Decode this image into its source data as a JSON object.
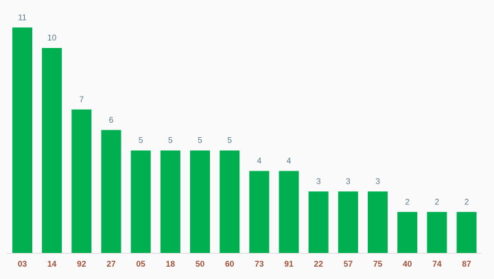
{
  "chart_data": {
    "type": "bar",
    "categories": [
      "03",
      "14",
      "92",
      "27",
      "05",
      "18",
      "50",
      "60",
      "73",
      "91",
      "22",
      "57",
      "75",
      "40",
      "74",
      "87"
    ],
    "values": [
      11,
      10,
      7,
      6,
      5,
      5,
      5,
      5,
      4,
      4,
      3,
      3,
      3,
      2,
      2,
      2
    ],
    "color": "#00b050"
  }
}
